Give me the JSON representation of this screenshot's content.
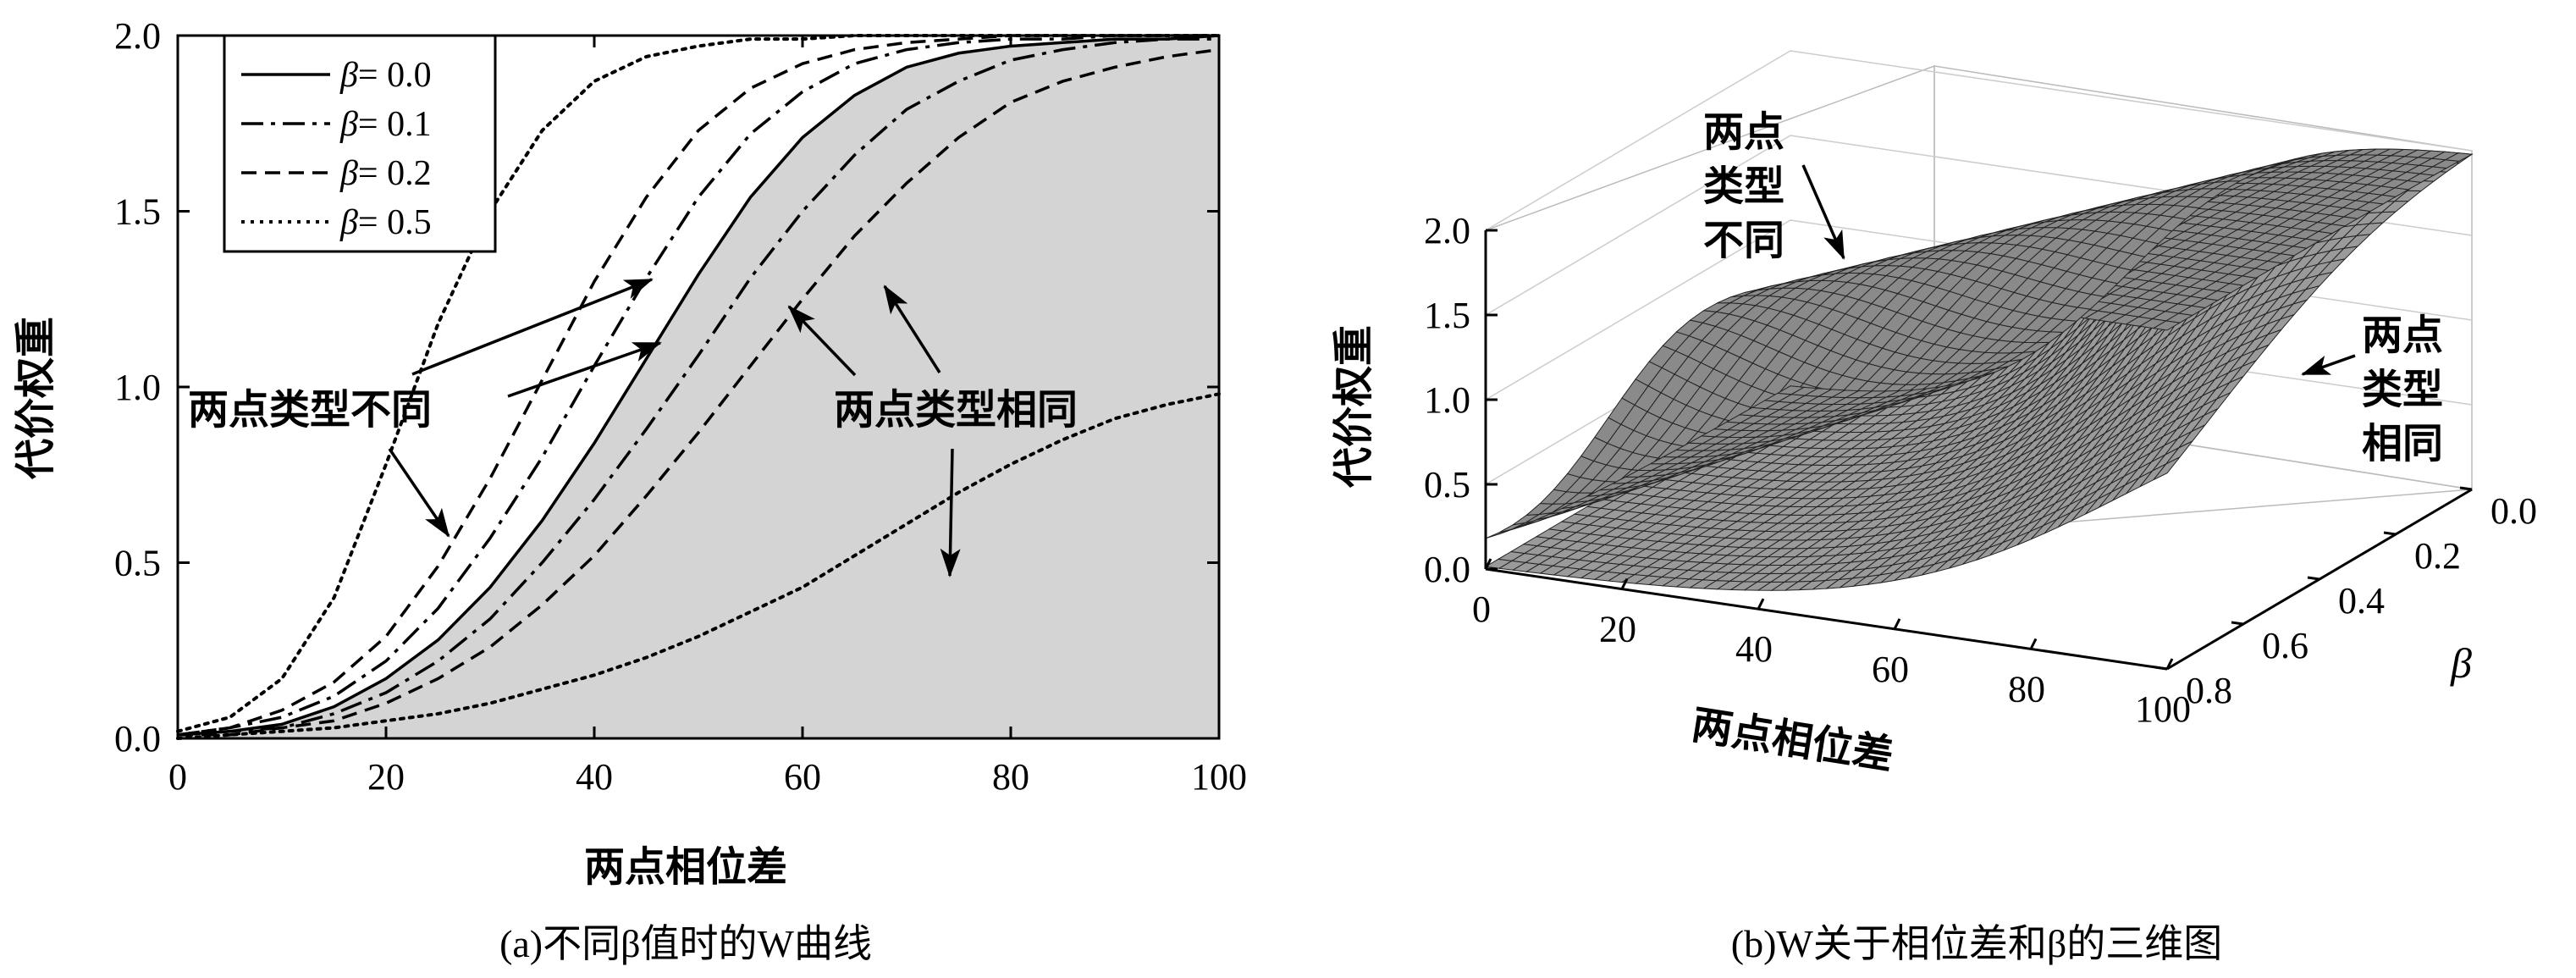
{
  "chart_data": [
    {
      "type": "line",
      "caption": "(a)不同β值时的W曲线",
      "xlabel": "两点相位差",
      "ylabel": "代价权重",
      "xlim": [
        0,
        100
      ],
      "ylim": [
        0,
        2.0
      ],
      "x_ticks": [
        "0",
        "20",
        "40",
        "60",
        "80",
        "100"
      ],
      "y_ticks": [
        "0.0",
        "0.5",
        "1.0",
        "1.5",
        "2.0"
      ],
      "legend_position": "top-left",
      "x": [
        0,
        5,
        10,
        15,
        20,
        25,
        30,
        35,
        40,
        45,
        50,
        55,
        60,
        65,
        70,
        75,
        80,
        85,
        90,
        95,
        100
      ],
      "series": [
        {
          "name": "β= 0.0",
          "dash": "solid",
          "branch": "base",
          "values": [
            0.01,
            0.02,
            0.04,
            0.09,
            0.17,
            0.28,
            0.43,
            0.62,
            0.84,
            1.08,
            1.32,
            1.54,
            1.71,
            1.83,
            1.91,
            1.95,
            1.97,
            1.98,
            1.99,
            1.99,
            2.0
          ]
        },
        {
          "name": "β= 0.1",
          "dash": "dashdot",
          "branch": "different",
          "values": [
            0.01,
            0.03,
            0.06,
            0.12,
            0.22,
            0.37,
            0.57,
            0.8,
            1.06,
            1.31,
            1.54,
            1.72,
            1.84,
            1.92,
            1.96,
            1.98,
            1.99,
            1.99,
            2.0,
            2.0,
            2.0
          ]
        },
        {
          "name": "β= 0.1",
          "dash": "dashdot",
          "branch": "same",
          "values": [
            0.01,
            0.02,
            0.03,
            0.07,
            0.13,
            0.22,
            0.34,
            0.5,
            0.68,
            0.88,
            1.09,
            1.31,
            1.5,
            1.66,
            1.79,
            1.87,
            1.93,
            1.96,
            1.98,
            1.99,
            1.99
          ]
        },
        {
          "name": "β= 0.2",
          "dash": "dashed",
          "branch": "different",
          "values": [
            0.01,
            0.03,
            0.08,
            0.16,
            0.29,
            0.49,
            0.74,
            1.02,
            1.3,
            1.54,
            1.73,
            1.85,
            1.92,
            1.96,
            1.98,
            1.99,
            2.0,
            2.0,
            2.0,
            2.0,
            2.0
          ]
        },
        {
          "name": "β= 0.2",
          "dash": "dashed",
          "branch": "same",
          "values": [
            0.01,
            0.01,
            0.03,
            0.05,
            0.1,
            0.17,
            0.26,
            0.38,
            0.52,
            0.69,
            0.87,
            1.06,
            1.25,
            1.43,
            1.58,
            1.71,
            1.81,
            1.87,
            1.91,
            1.94,
            1.96
          ]
        },
        {
          "name": "β= 0.5",
          "dash": "dotted",
          "branch": "different",
          "values": [
            0.02,
            0.06,
            0.17,
            0.4,
            0.78,
            1.18,
            1.5,
            1.73,
            1.87,
            1.94,
            1.97,
            1.99,
            1.99,
            2.0,
            2.0,
            2.0,
            2.0,
            2.0,
            2.0,
            2.0,
            2.0
          ]
        },
        {
          "name": "β= 0.5",
          "dash": "dotted",
          "branch": "same",
          "values": [
            0.0,
            0.01,
            0.02,
            0.03,
            0.05,
            0.07,
            0.1,
            0.14,
            0.18,
            0.23,
            0.29,
            0.36,
            0.43,
            0.52,
            0.61,
            0.7,
            0.78,
            0.85,
            0.91,
            0.95,
            0.98
          ]
        }
      ],
      "shaded_region": "below β= 0.0 curve to x-axis, x ≥ 50 area up to 2.0",
      "annotations": [
        {
          "text": "两点类型不同"
        },
        {
          "text": "两点类型相同"
        }
      ]
    },
    {
      "type": "surface3d",
      "caption": "(b)W关于相位差和β的三维图",
      "xlabel": "两点相位差",
      "ylabel": "β",
      "zlabel": "代价权重",
      "x_ticks": [
        "0",
        "20",
        "40",
        "60",
        "80",
        "100"
      ],
      "y_ticks": [
        "0.0",
        "0.2",
        "0.4",
        "0.6",
        "0.8"
      ],
      "z_ticks": [
        "0.0",
        "0.5",
        "1.0",
        "1.5",
        "2.0"
      ],
      "annotations": [
        {
          "text": "两点类型不同"
        },
        {
          "text": "两点类型相同"
        }
      ]
    }
  ],
  "panel_a": {
    "legend": [
      "0.0",
      "0.1",
      "0.2",
      "0.5"
    ],
    "legend_beta": "β",
    "legend_eq": "= ",
    "annotation_diff": "两点类型不同",
    "annotation_same": "两点类型相同",
    "caption": "(a)不同β值时的W曲线"
  },
  "panel_b": {
    "annotation_diff_lines": [
      "两点",
      "类型",
      "不同"
    ],
    "annotation_same_lines": [
      "两点",
      "类型",
      "相同"
    ],
    "caption": "(b)W关于相位差和β的三维图"
  }
}
